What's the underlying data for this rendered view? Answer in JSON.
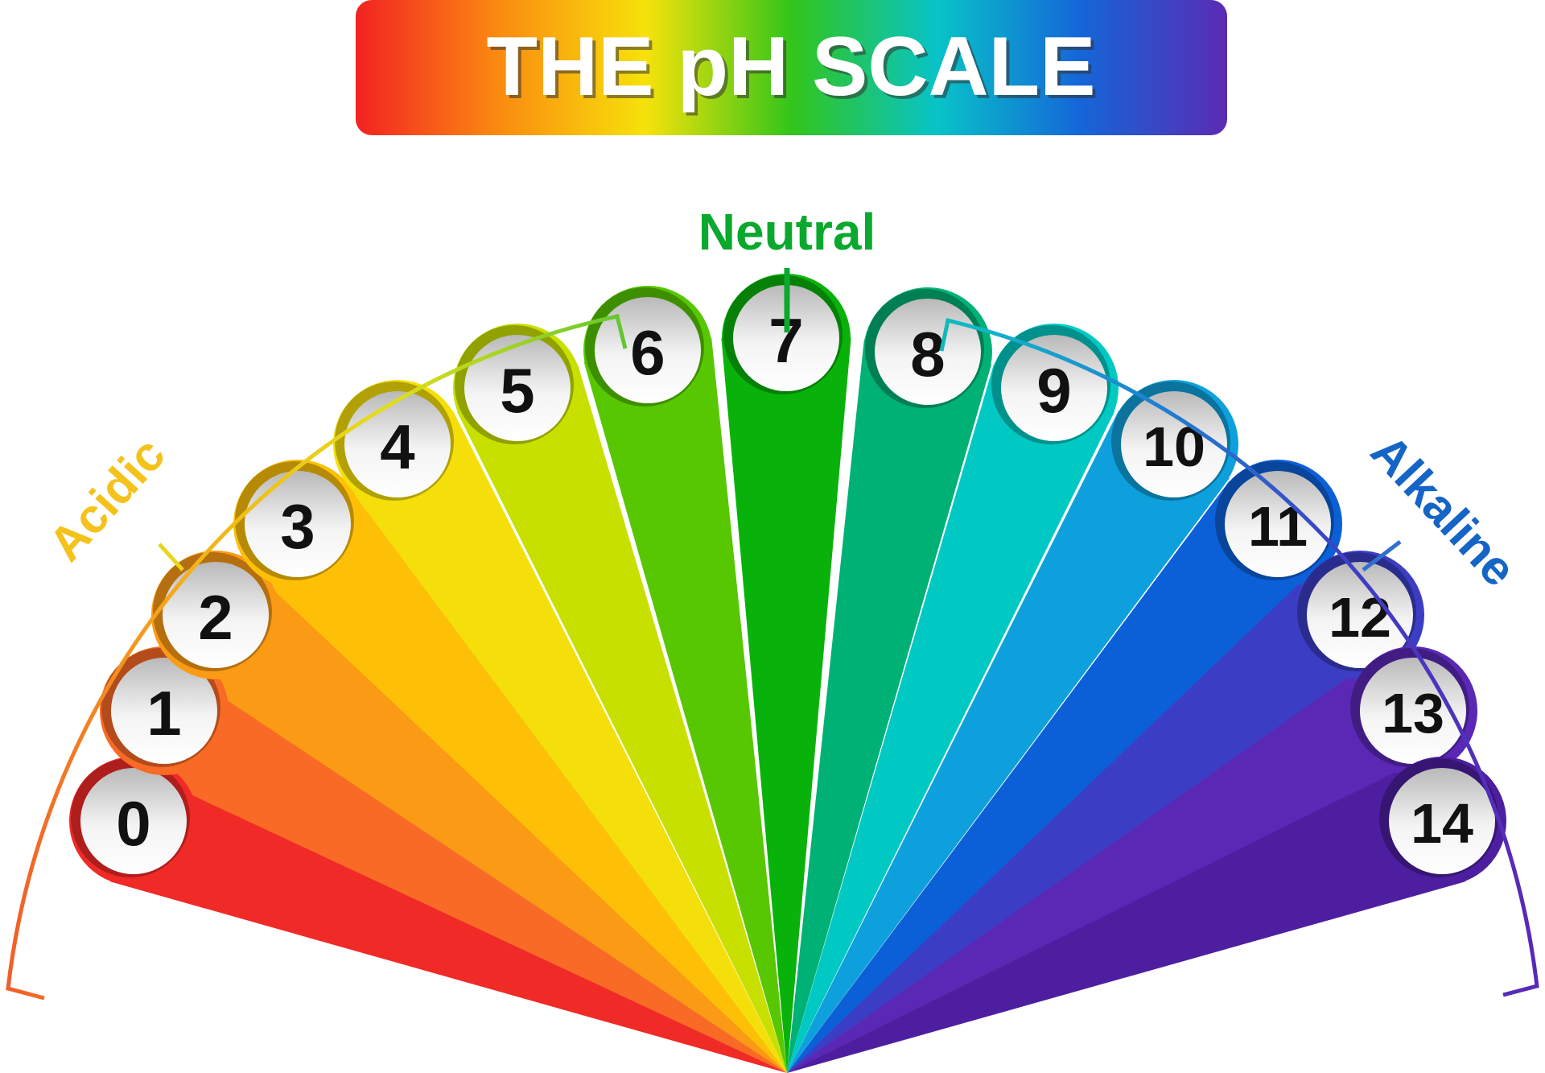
{
  "title": "THE pH SCALE",
  "labels": {
    "acidic": "Acidic",
    "neutral": "Neutral",
    "alkaline": "Alkaline"
  },
  "scale": [
    {
      "value": "0",
      "color": "#f02a27"
    },
    {
      "value": "1",
      "color": "#f86a25"
    },
    {
      "value": "2",
      "color": "#fb9a14"
    },
    {
      "value": "3",
      "color": "#fdc007"
    },
    {
      "value": "4",
      "color": "#f5df0a"
    },
    {
      "value": "5",
      "color": "#c8e000"
    },
    {
      "value": "6",
      "color": "#56c700"
    },
    {
      "value": "7",
      "color": "#09b20a"
    },
    {
      "value": "8",
      "color": "#00b176"
    },
    {
      "value": "9",
      "color": "#00c9c3"
    },
    {
      "value": "10",
      "color": "#0ea0dc"
    },
    {
      "value": "11",
      "color": "#0c60d7"
    },
    {
      "value": "12",
      "color": "#3b3ec4"
    },
    {
      "value": "13",
      "color": "#5a28b5"
    },
    {
      "value": "14",
      "color": "#4d1fa0"
    }
  ],
  "colors": {
    "acidic_label": "#f4c21a",
    "neutral_label": "#0aa92e",
    "alkaline_label": "#1565c6",
    "title_gradient": [
      "#f22222",
      "#fb8c10",
      "#f6e20a",
      "#32c51a",
      "#08c3c8",
      "#1565d8",
      "#5b2bb3"
    ]
  }
}
